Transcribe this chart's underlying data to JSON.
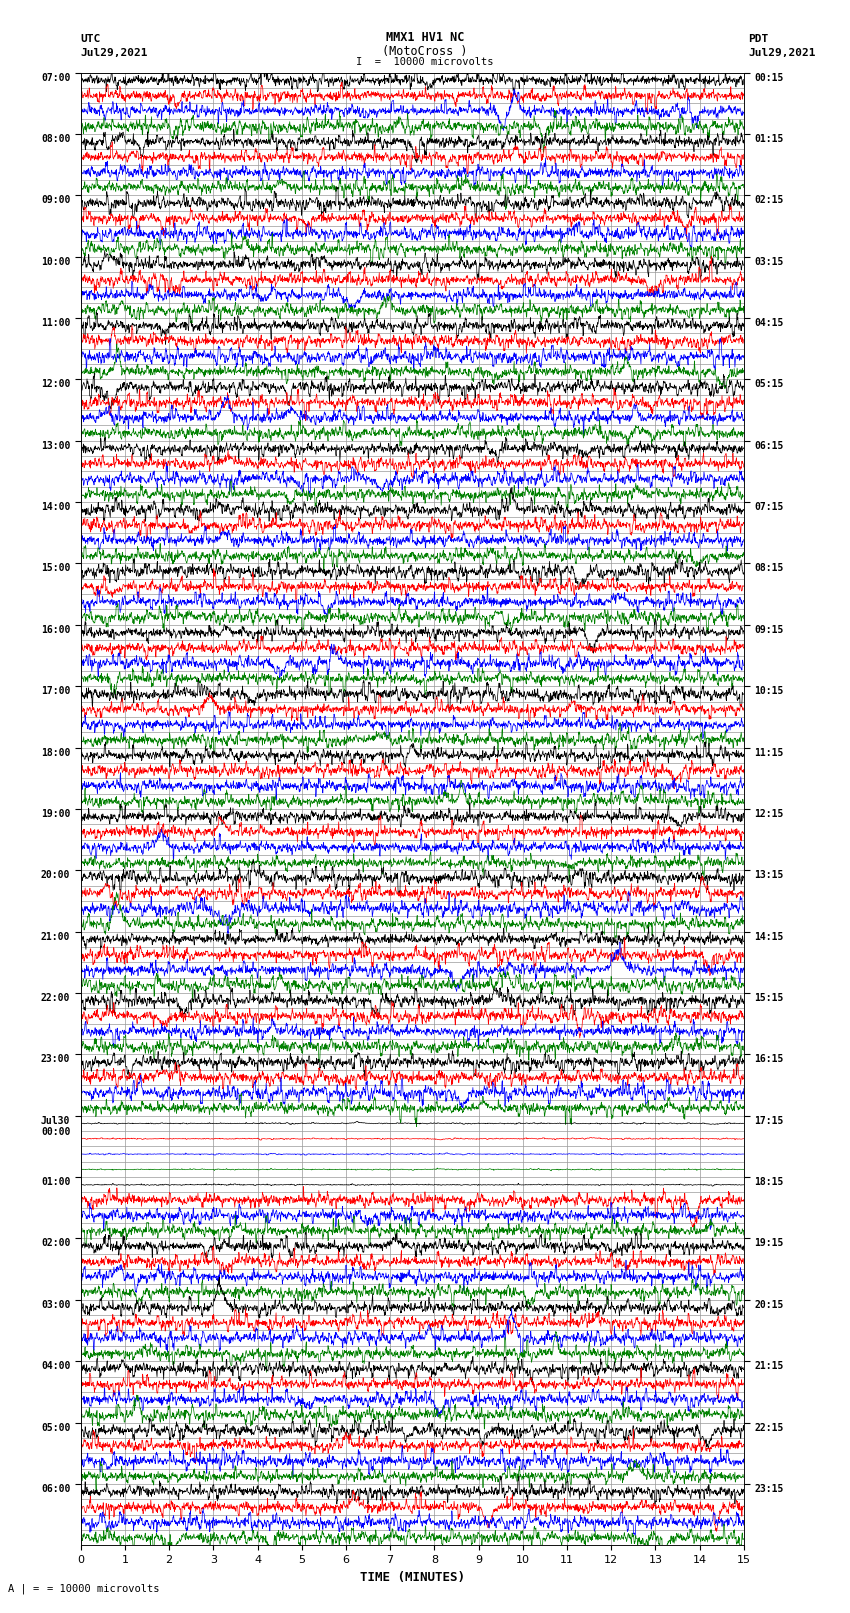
{
  "title_line1": "MMX1 HV1 NC",
  "title_line2": "(MotoCross )",
  "left_header": "UTC",
  "left_date": "Jul29,2021",
  "right_header": "PDT",
  "right_date": "Jul29,2021",
  "scale_label": "= 10000 microvolts",
  "xlabel": "TIME (MINUTES)",
  "left_times": [
    "07:00",
    "08:00",
    "09:00",
    "10:00",
    "11:00",
    "12:00",
    "13:00",
    "14:00",
    "15:00",
    "16:00",
    "17:00",
    "18:00",
    "19:00",
    "20:00",
    "21:00",
    "22:00",
    "23:00",
    "Jul30\n00:00",
    "01:00",
    "02:00",
    "03:00",
    "04:00",
    "05:00",
    "06:00"
  ],
  "right_times": [
    "00:15",
    "01:15",
    "02:15",
    "03:15",
    "04:15",
    "05:15",
    "06:15",
    "07:15",
    "08:15",
    "09:15",
    "10:15",
    "11:15",
    "12:15",
    "13:15",
    "14:15",
    "15:15",
    "16:15",
    "17:15",
    "18:15",
    "19:15",
    "20:15",
    "21:15",
    "22:15",
    "23:15"
  ],
  "n_rows": 24,
  "n_subrows": 4,
  "row_colors": [
    "black",
    "red",
    "blue",
    "green"
  ],
  "minutes_per_row": 15,
  "x_ticks": [
    0,
    1,
    2,
    3,
    4,
    5,
    6,
    7,
    8,
    9,
    10,
    11,
    12,
    13,
    14,
    15
  ],
  "background_color": "white",
  "grid_color": "#999999",
  "grid_linewidth": 0.5,
  "signal_linewidth": 0.5,
  "fig_width": 8.5,
  "fig_height": 16.13,
  "quiet_rows": [
    17,
    18
  ],
  "quiet_row_18_partial": true
}
